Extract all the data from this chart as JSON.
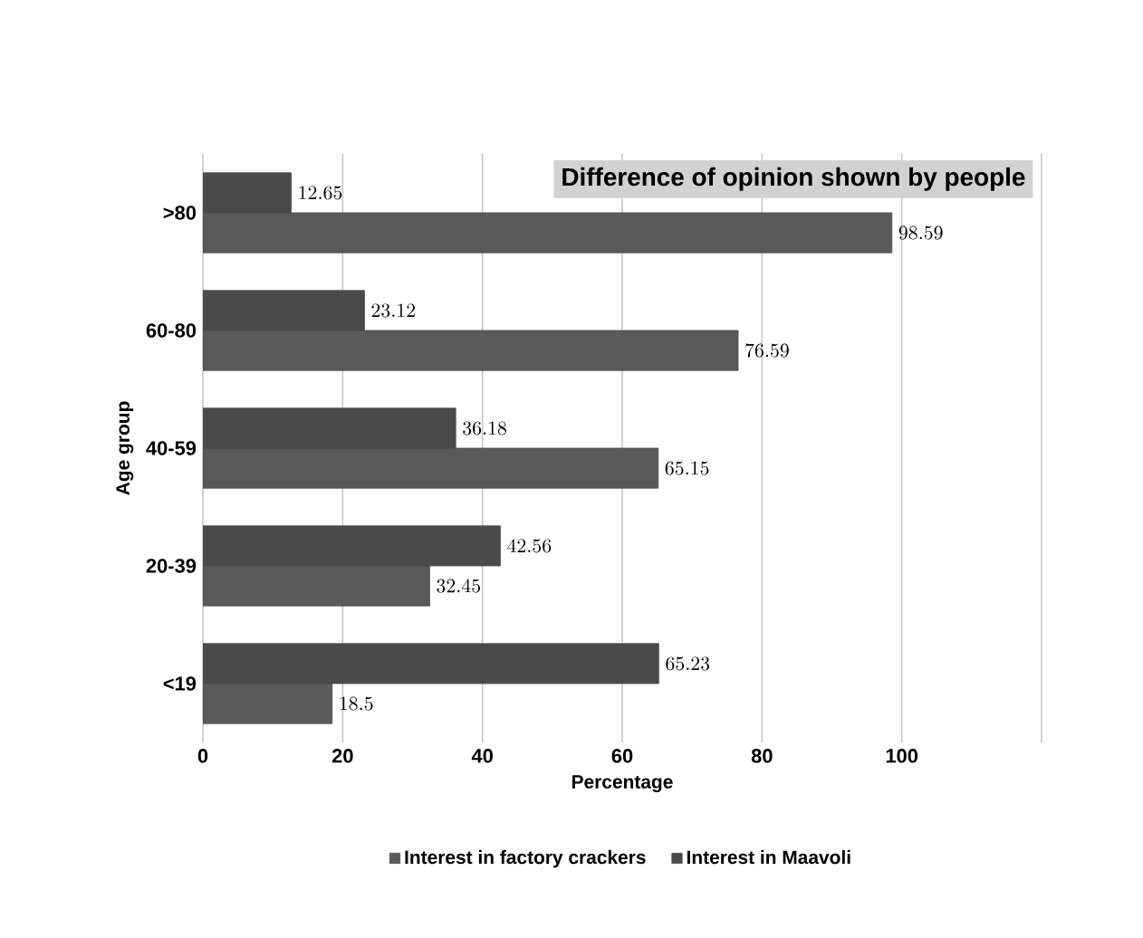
{
  "chart_data": {
    "type": "bar",
    "orientation": "horizontal",
    "title": "Difference of opinion shown by people",
    "xlabel": "Percentage",
    "ylabel": "Age group",
    "categories": [
      ">80",
      "60-80",
      "40-59",
      "20-39",
      "<19"
    ],
    "series": [
      {
        "name": "Interest in factory crackers",
        "color": "#5a5a5a",
        "values": [
          98.59,
          76.59,
          65.15,
          32.45,
          18.5
        ]
      },
      {
        "name": "Interest in Maavoli",
        "color": "#4a4a4a",
        "values": [
          12.65,
          23.12,
          36.18,
          42.56,
          65.23
        ]
      }
    ],
    "xlim": [
      0,
      120
    ],
    "xticks": [
      0,
      20,
      40,
      60,
      80,
      100,
      {
        "value": 120,
        "label": null
      }
    ],
    "grid": "x",
    "legend": "bottom",
    "data_labels": true
  }
}
